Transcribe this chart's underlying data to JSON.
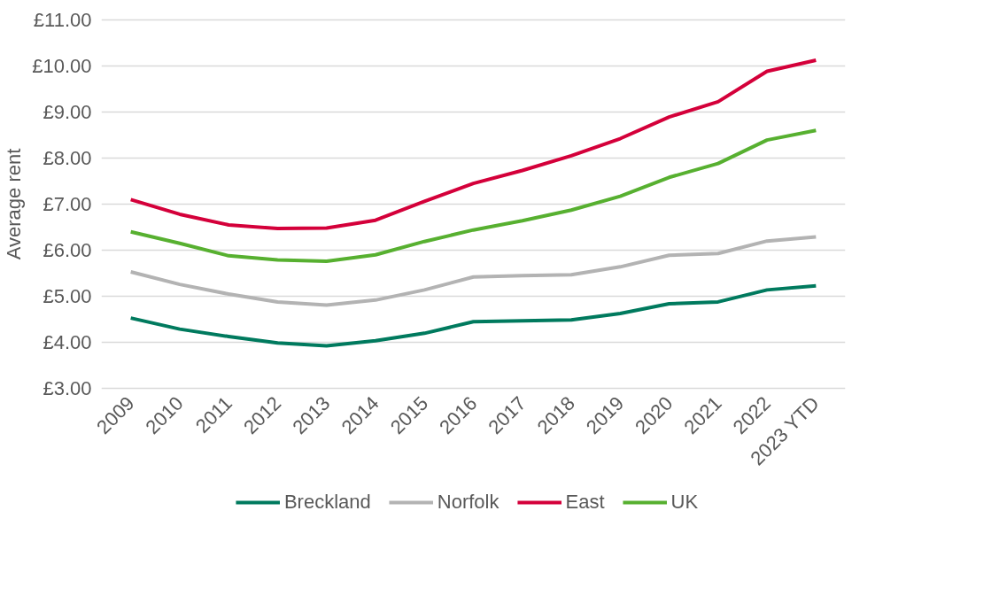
{
  "chart_data": {
    "type": "line",
    "ylabel": "Average rent",
    "categories": [
      "2009",
      "2010",
      "2011",
      "2012",
      "2013",
      "2014",
      "2015",
      "2016",
      "2017",
      "2018",
      "2019",
      "2020",
      "2021",
      "2022",
      "2023 YTD"
    ],
    "series": [
      {
        "name": "Breckland",
        "color": "#007a5e",
        "values": [
          4.53,
          4.29,
          4.13,
          3.99,
          3.93,
          4.04,
          4.2,
          4.45,
          4.47,
          4.49,
          4.63,
          4.84,
          4.88,
          5.14,
          5.23
        ]
      },
      {
        "name": "Norfolk",
        "color": "#b3b3b3",
        "values": [
          5.53,
          5.26,
          5.05,
          4.88,
          4.81,
          4.92,
          5.14,
          5.42,
          5.45,
          5.47,
          5.64,
          5.89,
          5.93,
          6.2,
          6.29
        ]
      },
      {
        "name": "East",
        "color": "#d4003a",
        "values": [
          7.1,
          6.78,
          6.55,
          6.47,
          6.48,
          6.65,
          7.06,
          7.45,
          7.73,
          8.05,
          8.42,
          8.89,
          9.22,
          9.88,
          10.12
        ]
      },
      {
        "name": "UK",
        "color": "#57b030",
        "values": [
          6.4,
          6.15,
          5.88,
          5.79,
          5.76,
          5.9,
          6.19,
          6.44,
          6.64,
          6.87,
          7.17,
          7.58,
          7.88,
          8.39,
          8.6
        ]
      }
    ],
    "ylim": [
      3,
      11
    ],
    "yticks": [
      {
        "value": 3,
        "label": "£3.00"
      },
      {
        "value": 4,
        "label": "£4.00"
      },
      {
        "value": 5,
        "label": "£5.00"
      },
      {
        "value": 6,
        "label": "£6.00"
      },
      {
        "value": 7,
        "label": "£7.00"
      },
      {
        "value": 8,
        "label": "£8.00"
      },
      {
        "value": 9,
        "label": "£9.00"
      },
      {
        "value": 10,
        "label": "£10.00"
      },
      {
        "value": 11,
        "label": "£11.00"
      }
    ],
    "grid": "y",
    "legend": "bottom",
    "marker": "none",
    "line_style": "solid"
  }
}
